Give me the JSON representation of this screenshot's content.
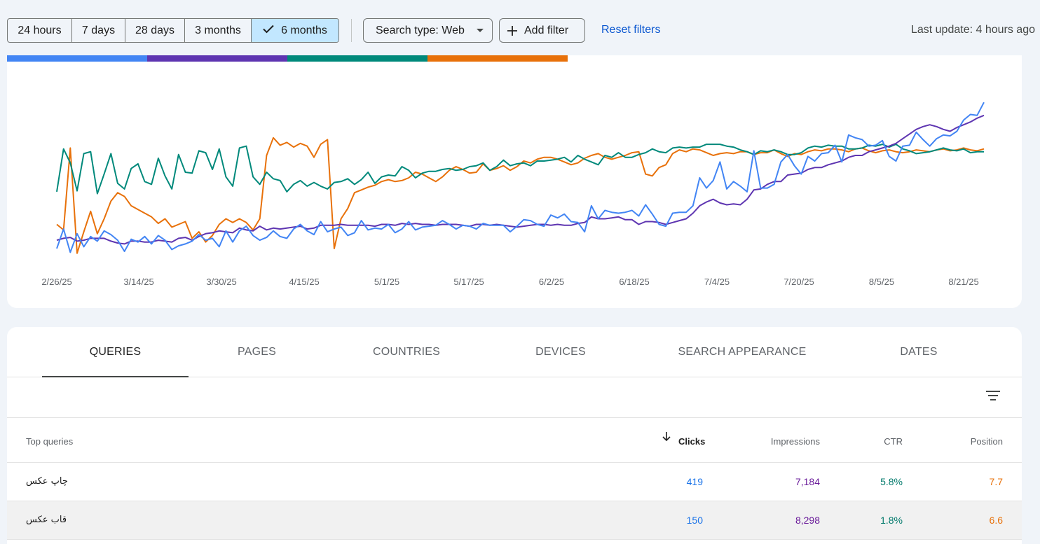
{
  "toolbar": {
    "ranges": [
      {
        "label": "24 hours",
        "active": false
      },
      {
        "label": "7 days",
        "active": false
      },
      {
        "label": "28 days",
        "active": false
      },
      {
        "label": "3 months",
        "active": false
      },
      {
        "label": "6 months",
        "active": true
      }
    ],
    "search_type": "Search type: Web",
    "add_filter": "Add filter",
    "reset_filters": "Reset filters",
    "last_update": "Last update: 4 hours ago"
  },
  "colors": {
    "clicks": "#4285f4",
    "impressions": "#5e35b1",
    "ctr": "#00897b",
    "position": "#e8710a",
    "link": "#0b57d0",
    "active_range": "#c2e7ff"
  },
  "chart_data": {
    "type": "line",
    "x_ticks": [
      "2/26/25",
      "3/14/25",
      "3/30/25",
      "4/15/25",
      "5/1/25",
      "5/17/25",
      "6/2/25",
      "6/18/25",
      "7/4/25",
      "7/20/25",
      "8/5/25",
      "8/21/25"
    ],
    "x_range": [
      "2/26/25",
      "8/25/25"
    ],
    "axes_visible": false,
    "grid": false,
    "series": [
      {
        "key": "clicks",
        "color": "#4285f4",
        "values": [
          0.12,
          0.33,
          0.08,
          0.28,
          0.14,
          0.25,
          0.2,
          0.31,
          0.27,
          0.21,
          0.09,
          0.22,
          0.19,
          0.25,
          0.17,
          0.26,
          0.21,
          0.11,
          0.15,
          0.17,
          0.2,
          0.27,
          0.21,
          0.23,
          0.14,
          0.31,
          0.19,
          0.31,
          0.36,
          0.26,
          0.21,
          0.24,
          0.31,
          0.25,
          0.23,
          0.33,
          0.38,
          0.31,
          0.27,
          0.41,
          0.3,
          0.33,
          0.35,
          0.26,
          0.29,
          0.42,
          0.32,
          0.34,
          0.33,
          0.38,
          0.29,
          0.33,
          0.41,
          0.32,
          0.35,
          0.36,
          0.37,
          0.42,
          0.38,
          0.33,
          0.37,
          0.36,
          0.33,
          0.39,
          0.37,
          0.37,
          0.37,
          0.3,
          0.36,
          0.43,
          0.42,
          0.38,
          0.36,
          0.48,
          0.45,
          0.49,
          0.41,
          0.4,
          0.3,
          0.58,
          0.44,
          0.53,
          0.51,
          0.5,
          0.51,
          0.53,
          0.47,
          0.59,
          0.49,
          0.38,
          0.36,
          0.5,
          0.51,
          0.51,
          0.58,
          0.88,
          0.77,
          0.85,
          1.05,
          0.76,
          0.84,
          0.79,
          0.73,
          1.17,
          0.77,
          0.77,
          0.81,
          1.05,
          1.13,
          1.01,
          0.92,
          1.11,
          1.06,
          1.14,
          1.15,
          1.23,
          1.05,
          1.34,
          1.31,
          1.29,
          1.22,
          1.23,
          1.28,
          1.11,
          1.06,
          1.22,
          1.23,
          1.37,
          1.29,
          1.22,
          1.3,
          1.34,
          1.33,
          1.38,
          1.5,
          1.56,
          1.55,
          1.69
        ]
      },
      {
        "key": "impressions",
        "color": "#5e35b1",
        "values": [
          0.21,
          0.23,
          0.24,
          0.2,
          0.21,
          0.23,
          0.23,
          0.23,
          0.2,
          0.18,
          0.17,
          0.2,
          0.2,
          0.19,
          0.19,
          0.21,
          0.2,
          0.19,
          0.23,
          0.24,
          0.21,
          0.25,
          0.28,
          0.29,
          0.31,
          0.3,
          0.29,
          0.34,
          0.32,
          0.31,
          0.36,
          0.32,
          0.34,
          0.33,
          0.34,
          0.35,
          0.36,
          0.33,
          0.34,
          0.37,
          0.37,
          0.37,
          0.38,
          0.37,
          0.37,
          0.37,
          0.37,
          0.36,
          0.38,
          0.38,
          0.37,
          0.39,
          0.38,
          0.39,
          0.38,
          0.38,
          0.37,
          0.38,
          0.38,
          0.38,
          0.37,
          0.36,
          0.38,
          0.38,
          0.37,
          0.38,
          0.37,
          0.36,
          0.35,
          0.36,
          0.37,
          0.38,
          0.38,
          0.37,
          0.38,
          0.37,
          0.37,
          0.39,
          0.4,
          0.46,
          0.44,
          0.44,
          0.45,
          0.46,
          0.43,
          0.43,
          0.38,
          0.41,
          0.41,
          0.4,
          0.38,
          0.4,
          0.42,
          0.44,
          0.5,
          0.58,
          0.62,
          0.65,
          0.61,
          0.59,
          0.6,
          0.59,
          0.65,
          0.75,
          0.76,
          0.81,
          0.84,
          0.84,
          0.91,
          0.92,
          0.93,
          0.97,
          0.99,
          0.99,
          1.02,
          1.04,
          1.06,
          1.1,
          1.12,
          1.12,
          1.16,
          1.18,
          1.2,
          1.22,
          1.25,
          1.3,
          1.35,
          1.4,
          1.43,
          1.45,
          1.43,
          1.4,
          1.38,
          1.42,
          1.45,
          1.48,
          1.52,
          1.55
        ]
      },
      {
        "key": "ctr",
        "color": "#00897b",
        "values": [
          0.73,
          1.19,
          1.04,
          0.74,
          1.14,
          1.16,
          0.71,
          0.92,
          1.14,
          0.82,
          0.76,
          0.98,
          1.03,
          0.84,
          0.81,
          1.09,
          0.9,
          0.76,
          1.13,
          0.94,
          0.93,
          1.17,
          1.15,
          0.97,
          1.19,
          0.89,
          0.79,
          1.2,
          1.22,
          0.89,
          0.81,
          0.94,
          0.87,
          0.85,
          0.73,
          0.81,
          0.85,
          0.79,
          0.83,
          0.79,
          0.76,
          0.83,
          0.84,
          0.87,
          0.81,
          0.86,
          0.94,
          0.82,
          0.89,
          0.91,
          0.9,
          1.0,
          0.96,
          0.88,
          0.93,
          0.95,
          0.95,
          0.97,
          0.98,
          0.96,
          0.97,
          1.0,
          1.01,
          1.04,
          0.96,
          1.0,
          1.07,
          1.01,
          1.03,
          1.04,
          1.01,
          1.06,
          1.06,
          1.07,
          1.08,
          1.1,
          1.05,
          1.12,
          1.08,
          1.05,
          1.02,
          1.12,
          1.1,
          1.15,
          1.1,
          1.1,
          1.13,
          1.15,
          1.19,
          1.16,
          1.15,
          1.2,
          1.21,
          1.2,
          1.21,
          1.21,
          1.24,
          1.24,
          1.24,
          1.22,
          1.21,
          1.18,
          1.16,
          1.13,
          1.17,
          1.16,
          1.18,
          1.16,
          1.13,
          1.13,
          1.15,
          1.2,
          1.22,
          1.21,
          1.23,
          1.22,
          1.22,
          1.19,
          1.19,
          1.2,
          1.23,
          1.22,
          1.24,
          1.21,
          1.24,
          1.19,
          1.17,
          1.14,
          1.15,
          1.16,
          1.18,
          1.2,
          1.18,
          1.17,
          1.19,
          1.15,
          1.16,
          1.16
        ]
      },
      {
        "key": "position",
        "color": "#e8710a",
        "values": [
          0.38,
          0.32,
          1.2,
          0.07,
          0.3,
          0.52,
          0.28,
          0.44,
          0.63,
          0.72,
          0.68,
          0.58,
          0.54,
          0.5,
          0.46,
          0.39,
          0.44,
          0.35,
          0.38,
          0.41,
          0.23,
          0.3,
          0.19,
          0.26,
          0.38,
          0.44,
          0.4,
          0.44,
          0.4,
          0.32,
          0.44,
          1.12,
          1.31,
          1.23,
          1.26,
          1.21,
          1.25,
          1.22,
          1.1,
          1.24,
          1.29,
          0.12,
          0.44,
          0.55,
          0.72,
          0.75,
          0.78,
          0.8,
          0.84,
          0.86,
          0.84,
          0.85,
          0.88,
          0.94,
          0.92,
          0.88,
          0.84,
          0.89,
          0.96,
          1.0,
          0.97,
          0.93,
          0.94,
          1.03,
          0.96,
          0.98,
          1.01,
          0.96,
          1.0,
          1.06,
          1.04,
          1.08,
          1.1,
          1.1,
          1.08,
          1.05,
          1.02,
          1.04,
          1.09,
          1.12,
          1.14,
          1.1,
          1.08,
          1.1,
          1.12,
          1.15,
          1.16,
          0.92,
          0.9,
          0.99,
          1.02,
          1.14,
          1.18,
          1.16,
          1.19,
          1.18,
          1.15,
          1.12,
          1.14,
          1.15,
          1.14,
          1.16,
          1.16,
          1.13,
          1.15,
          1.15,
          1.18,
          1.14,
          1.11,
          1.14,
          1.13,
          1.16,
          1.18,
          1.17,
          1.19,
          1.19,
          1.18,
          1.16,
          1.19,
          1.2,
          1.17,
          1.15,
          1.17,
          1.18,
          1.16,
          1.15,
          1.16,
          1.18,
          1.17,
          1.16,
          1.18,
          1.19,
          1.17,
          1.18,
          1.2,
          1.18,
          1.17,
          1.19
        ]
      }
    ]
  },
  "tabs": [
    "QUERIES",
    "PAGES",
    "COUNTRIES",
    "DEVICES",
    "SEARCH APPEARANCE",
    "DATES"
  ],
  "table": {
    "columns": [
      "Top queries",
      "Clicks",
      "Impressions",
      "CTR",
      "Position"
    ],
    "rows": [
      {
        "query": "چاپ عکس",
        "clicks": "419",
        "impressions": "7,184",
        "ctr": "5.8%",
        "position": "7.7"
      },
      {
        "query": "قاب عکس",
        "clicks": "150",
        "impressions": "8,298",
        "ctr": "1.8%",
        "position": "6.6"
      }
    ]
  }
}
